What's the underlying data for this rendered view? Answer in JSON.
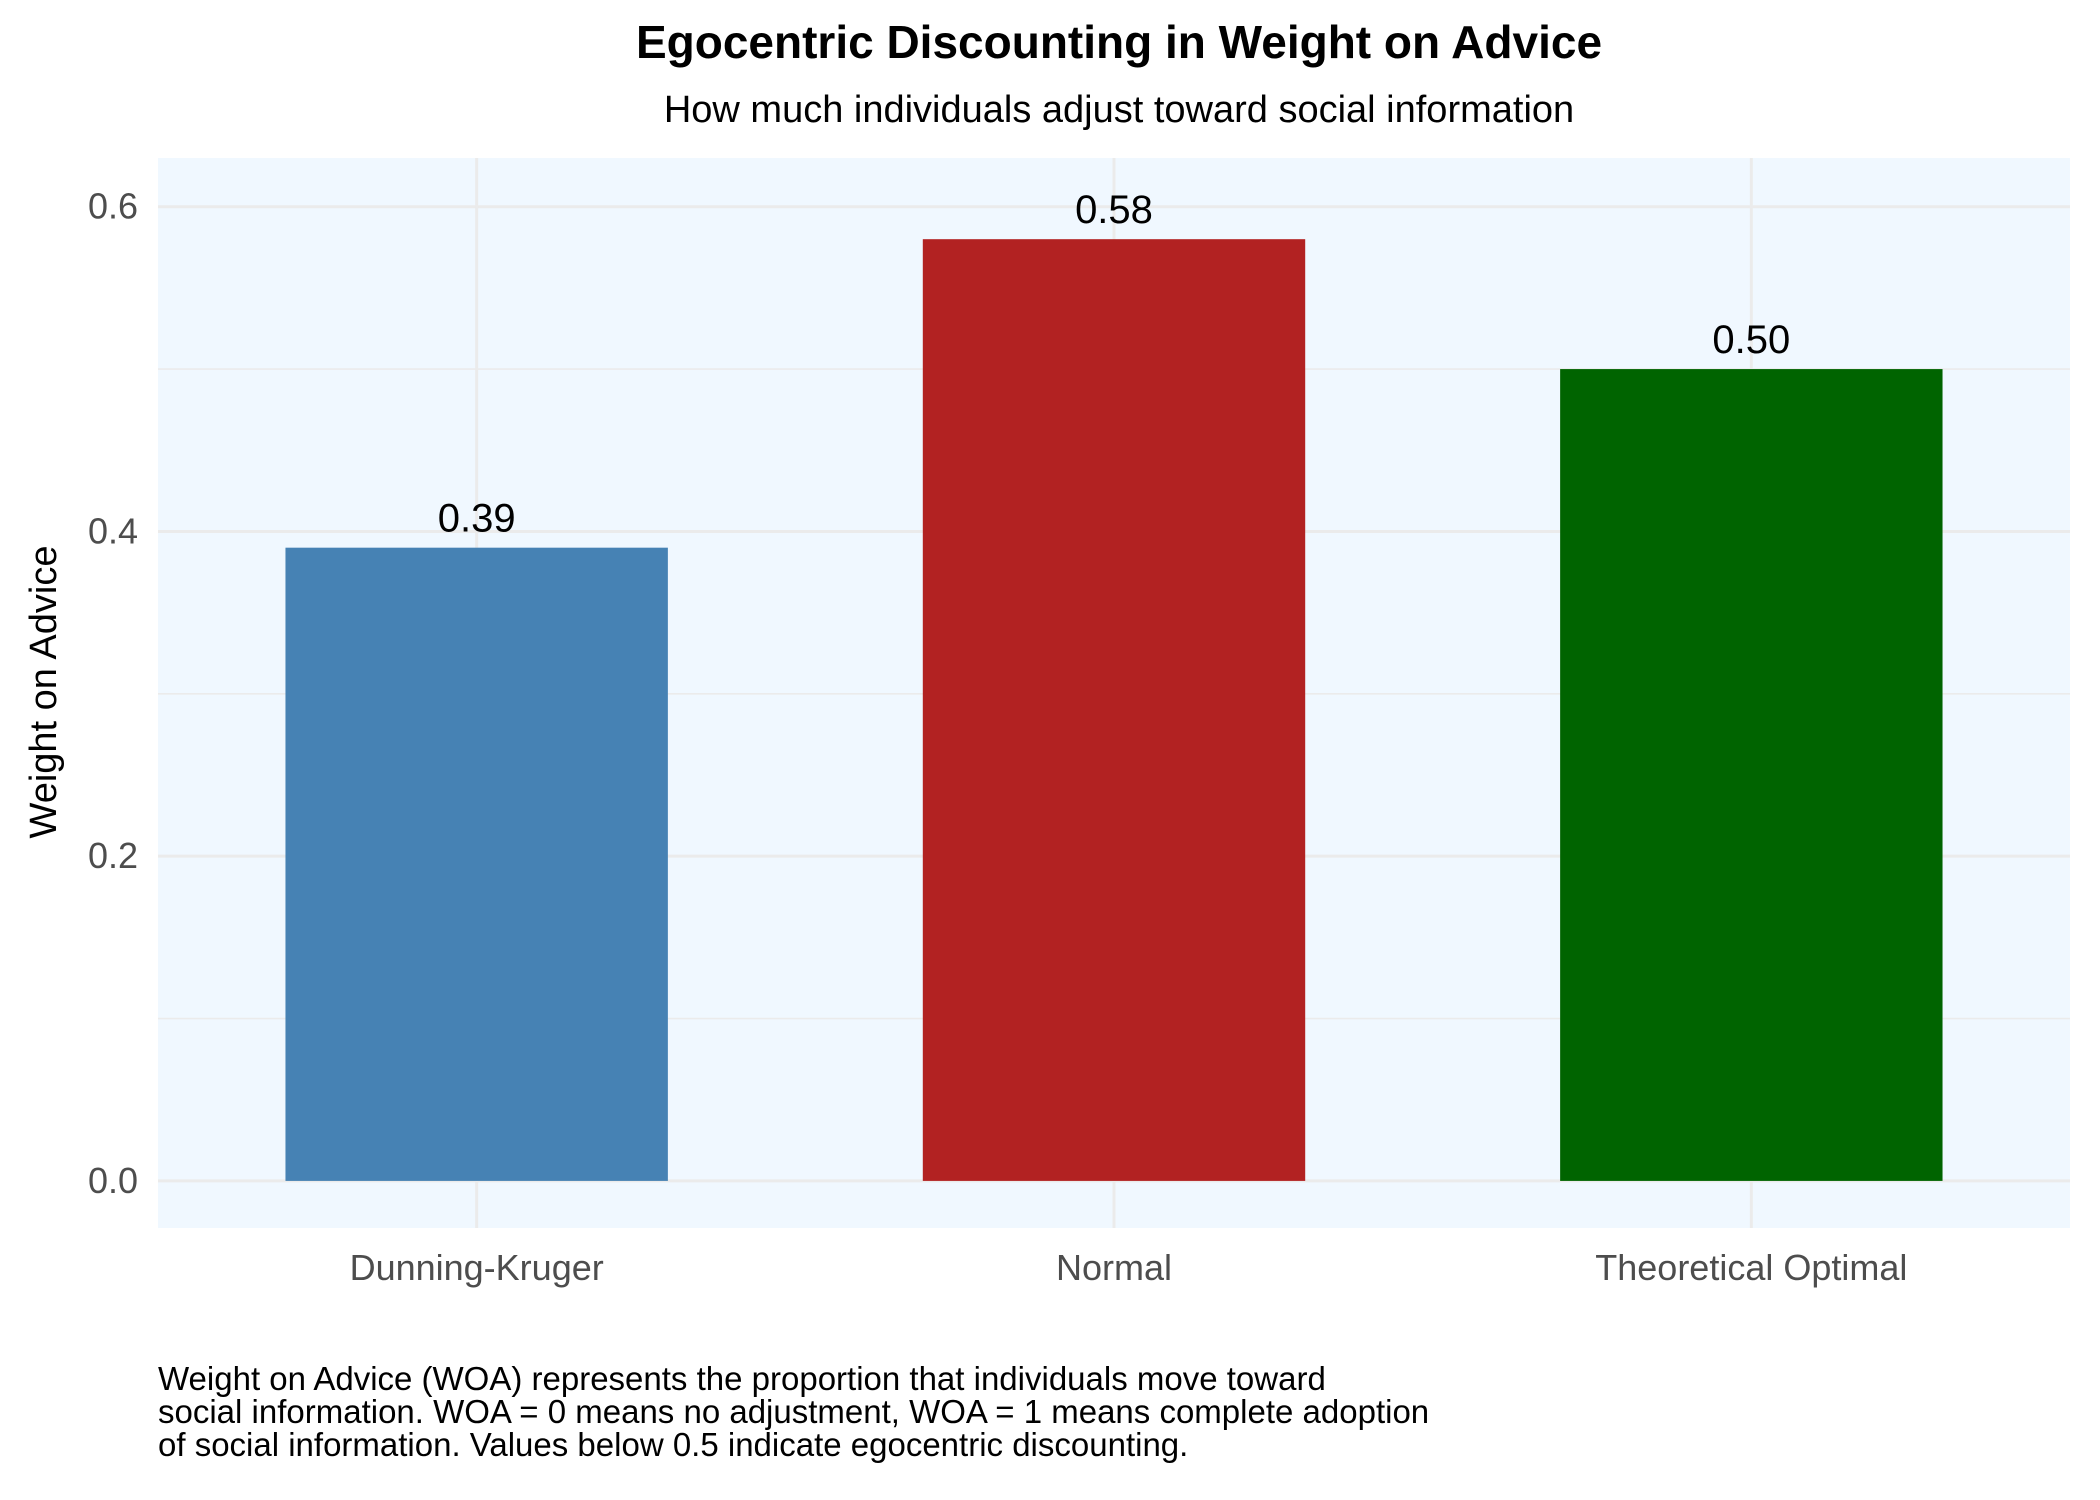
{
  "chart_data": {
    "type": "bar",
    "title": "Egocentric Discounting in Weight on Advice",
    "subtitle": "How much individuals adjust toward social information",
    "xlabel": "",
    "ylabel": "Weight on Advice",
    "categories": [
      "Dunning-Kruger",
      "Normal",
      "Theoretical Optimal"
    ],
    "values": [
      0.39,
      0.58,
      0.5
    ],
    "data_labels": [
      "0.39",
      "0.58",
      "0.50"
    ],
    "colors": [
      "#4682B4",
      "#B22222",
      "#006400"
    ],
    "ylim": [
      -0.029,
      0.63
    ],
    "y_ticks": [
      0.0,
      0.2,
      0.4,
      0.6
    ],
    "y_tick_labels": [
      "0.0",
      "0.2",
      "0.4",
      "0.6"
    ],
    "y_minor_ticks": [
      0.1,
      0.3,
      0.5
    ],
    "grid": true,
    "panel_background": "#F0F8FF",
    "grid_color": "#EBEBEB",
    "legend": "none"
  },
  "caption": {
    "lines": [
      "Weight on Advice (WOA) represents the proportion that individuals move toward",
      "social information. WOA = 0 means no adjustment, WOA = 1 means complete adoption",
      "of social information. Values below 0.5 indicate egocentric discounting."
    ]
  }
}
